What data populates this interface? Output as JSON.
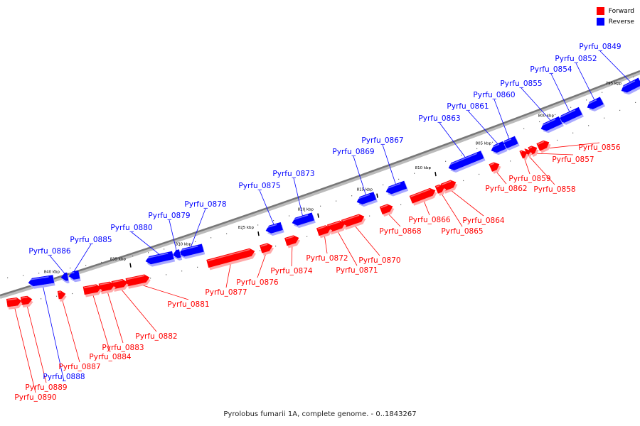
{
  "caption": "Pyrolobus fumarii 1A, complete genome. - 0..1843267",
  "legend": {
    "forward": {
      "label": "Forward",
      "color": "#ff0000"
    },
    "reverse": {
      "label": "Reverse",
      "color": "#0000ff"
    }
  },
  "ticks": [
    "795 kbp",
    "800 kbp",
    "805 kbp",
    "810 kbp",
    "815 kbp",
    "820 kbp",
    "825 kbp",
    "830 kbp",
    "835 kbp",
    "840 kbp"
  ],
  "genes": [
    {
      "name": "Pyrfu_0849",
      "strand": "reverse"
    },
    {
      "name": "Pyrfu_0852",
      "strand": "reverse"
    },
    {
      "name": "Pyrfu_0854",
      "strand": "reverse"
    },
    {
      "name": "Pyrfu_0855",
      "strand": "reverse"
    },
    {
      "name": "Pyrfu_0856",
      "strand": "forward"
    },
    {
      "name": "Pyrfu_0857",
      "strand": "forward"
    },
    {
      "name": "Pyrfu_0858",
      "strand": "forward"
    },
    {
      "name": "Pyrfu_0859",
      "strand": "forward"
    },
    {
      "name": "Pyrfu_0860",
      "strand": "reverse"
    },
    {
      "name": "Pyrfu_0861",
      "strand": "reverse"
    },
    {
      "name": "Pyrfu_0862",
      "strand": "forward"
    },
    {
      "name": "Pyrfu_0863",
      "strand": "reverse"
    },
    {
      "name": "Pyrfu_0864",
      "strand": "forward"
    },
    {
      "name": "Pyrfu_0865",
      "strand": "forward"
    },
    {
      "name": "Pyrfu_0866",
      "strand": "forward"
    },
    {
      "name": "Pyrfu_0867",
      "strand": "reverse"
    },
    {
      "name": "Pyrfu_0868",
      "strand": "forward"
    },
    {
      "name": "Pyrfu_0869",
      "strand": "reverse"
    },
    {
      "name": "Pyrfu_0870",
      "strand": "forward"
    },
    {
      "name": "Pyrfu_0871",
      "strand": "forward"
    },
    {
      "name": "Pyrfu_0872",
      "strand": "forward"
    },
    {
      "name": "Pyrfu_0873",
      "strand": "reverse"
    },
    {
      "name": "Pyrfu_0874",
      "strand": "forward"
    },
    {
      "name": "Pyrfu_0875",
      "strand": "reverse"
    },
    {
      "name": "Pyrfu_0876",
      "strand": "forward"
    },
    {
      "name": "Pyrfu_0877",
      "strand": "forward"
    },
    {
      "name": "Pyrfu_0878",
      "strand": "reverse"
    },
    {
      "name": "Pyrfu_0879",
      "strand": "reverse"
    },
    {
      "name": "Pyrfu_0880",
      "strand": "reverse"
    },
    {
      "name": "Pyrfu_0881",
      "strand": "forward"
    },
    {
      "name": "Pyrfu_0882",
      "strand": "forward"
    },
    {
      "name": "Pyrfu_0883",
      "strand": "forward"
    },
    {
      "name": "Pyrfu_0884",
      "strand": "forward"
    },
    {
      "name": "Pyrfu_0885",
      "strand": "reverse"
    },
    {
      "name": "Pyrfu_0886",
      "strand": "reverse"
    },
    {
      "name": "Pyrfu_0887",
      "strand": "forward"
    },
    {
      "name": "Pyrfu_0888",
      "strand": "reverse"
    },
    {
      "name": "Pyrfu_0889",
      "strand": "forward"
    },
    {
      "name": "Pyrfu_0890",
      "strand": "forward"
    }
  ]
}
